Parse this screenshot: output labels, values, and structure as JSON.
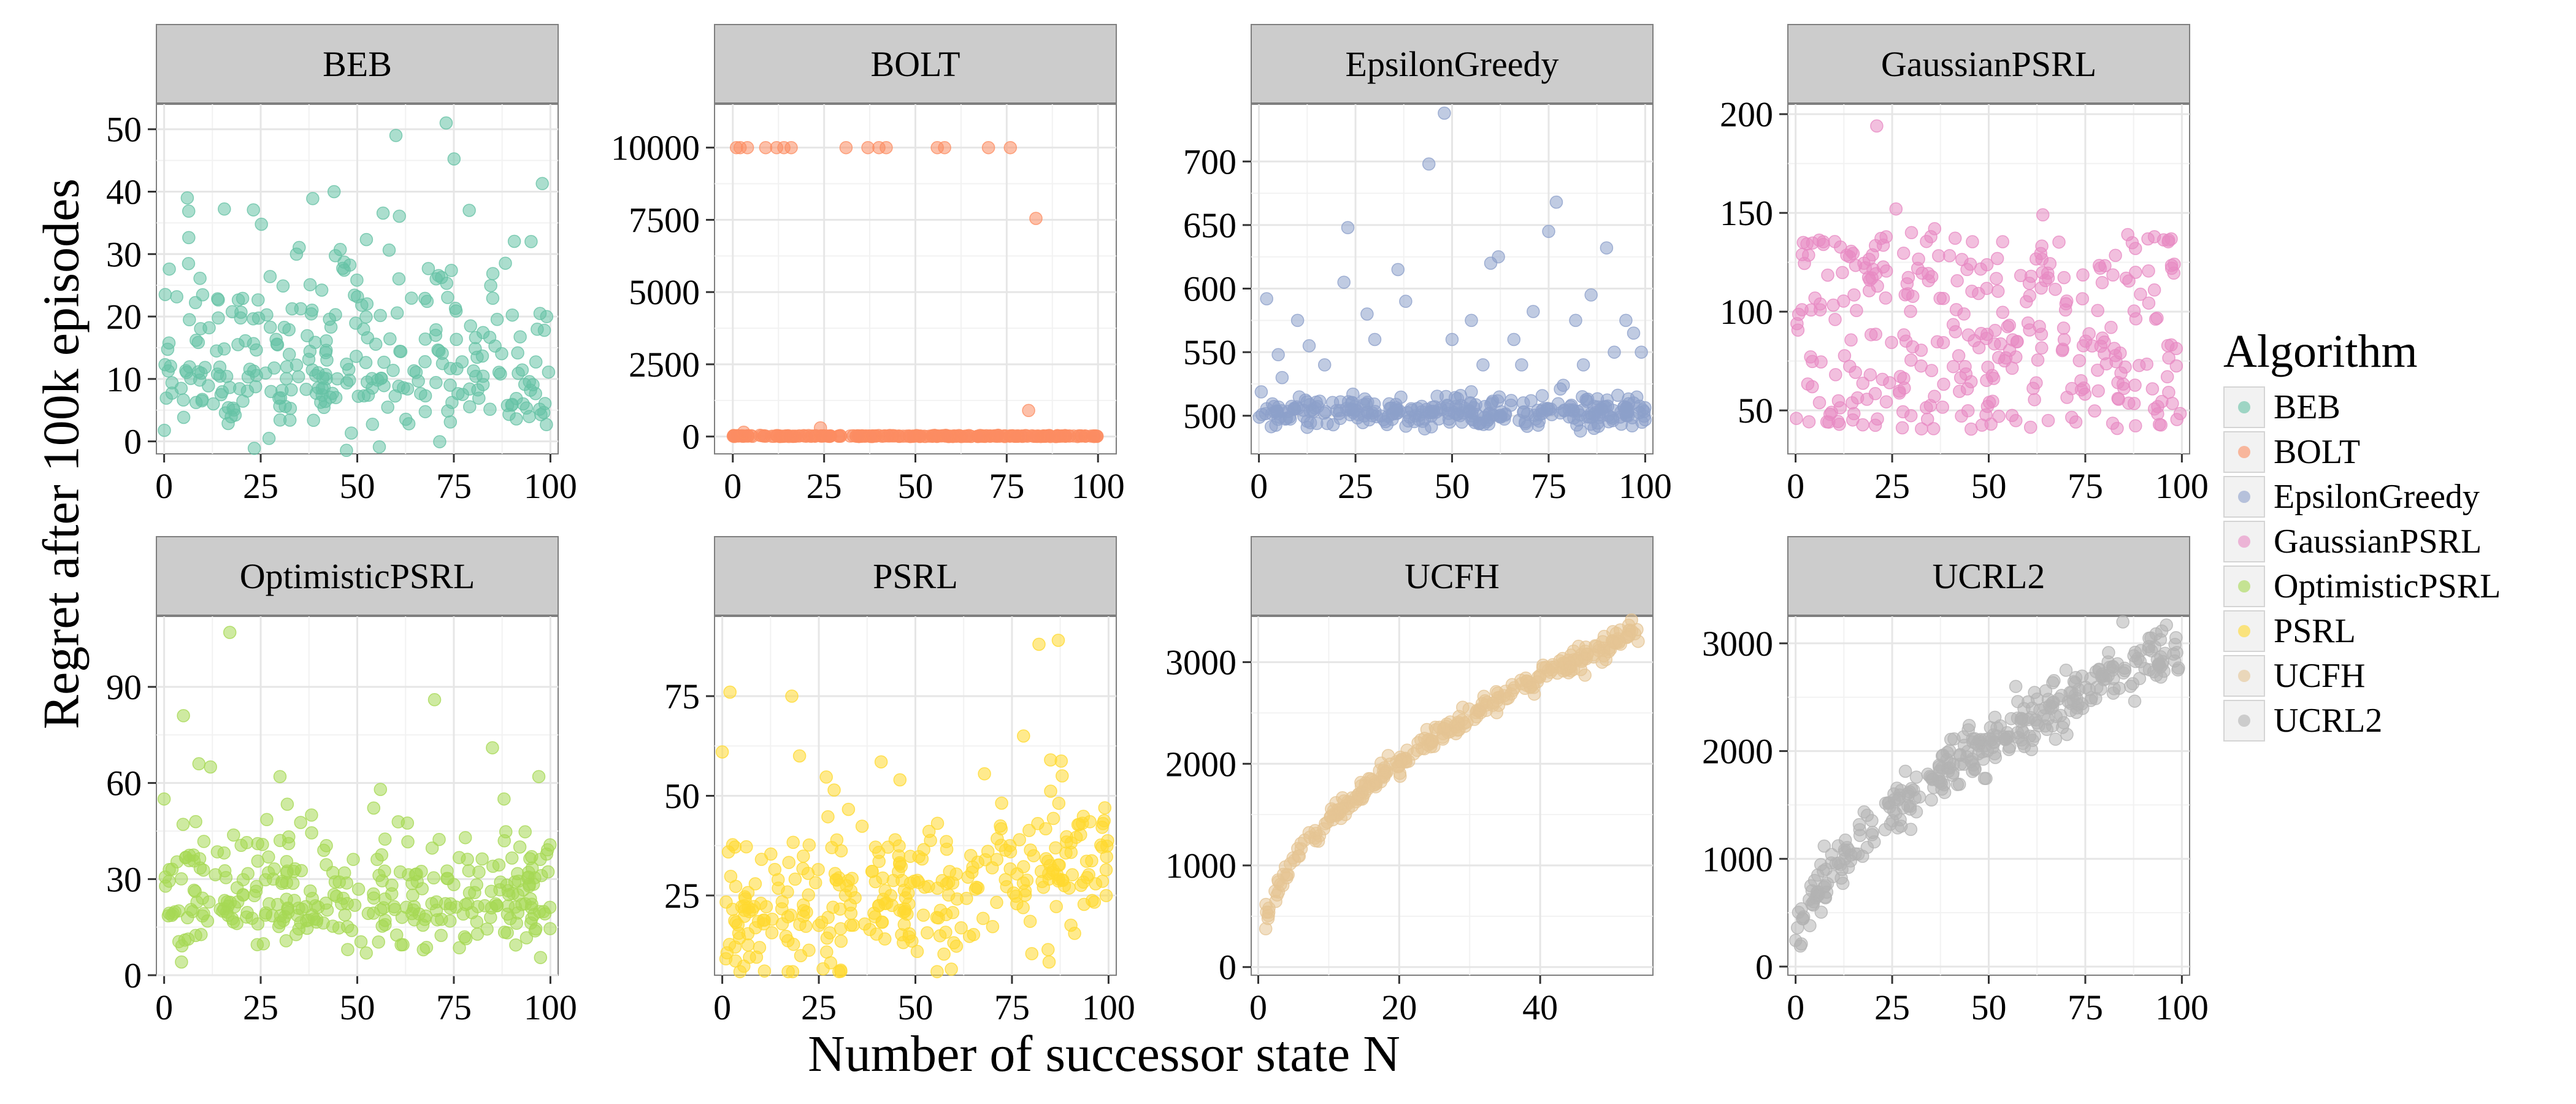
{
  "figure": {
    "ylabel": "Regret after 100k episodes",
    "xlabel": "Number of successor state N",
    "legend_title": "Algorithm"
  },
  "legend": [
    {
      "label": "BEB",
      "color": "#66c2a5"
    },
    {
      "label": "BOLT",
      "color": "#fc8d62"
    },
    {
      "label": "EpsilonGreedy",
      "color": "#8da0cb"
    },
    {
      "label": "GaussianPSRL",
      "color": "#e78ac3"
    },
    {
      "label": "OptimisticPSRL",
      "color": "#a6d854"
    },
    {
      "label": "PSRL",
      "color": "#ffd92f"
    },
    {
      "label": "UCFH",
      "color": "#e5c494"
    },
    {
      "label": "UCRL2",
      "color": "#b3b3b3"
    }
  ],
  "chart_data": [
    {
      "type": "scatter",
      "title": "BEB",
      "color": "#66c2a5",
      "xlim": [
        -2,
        102
      ],
      "ylim": [
        -2,
        54
      ],
      "xticks": [
        0,
        25,
        50,
        75,
        100
      ],
      "yticks": [
        0,
        10,
        20,
        30,
        40,
        50
      ],
      "gen": {
        "seed": 11,
        "n": 300,
        "xmax": 100,
        "kind": "noise",
        "base": 12,
        "spread": 7,
        "skew": 1.6
      },
      "outliers": [
        [
          6,
          39
        ],
        [
          44,
          40
        ],
        [
          60,
          49
        ],
        [
          73,
          51
        ],
        [
          79,
          37
        ],
        [
          95,
          32
        ]
      ]
    },
    {
      "type": "scatter",
      "title": "BOLT",
      "color": "#fc8d62",
      "xlim": [
        -5,
        105
      ],
      "ylim": [
        -600,
        11500
      ],
      "xticks": [
        0,
        25,
        50,
        75,
        100
      ],
      "yticks": [
        0,
        2500,
        5000,
        7500,
        10000
      ],
      "gen": {
        "seed": 22,
        "n": 260,
        "xmax": 100,
        "kind": "noise",
        "base": 15,
        "spread": 10,
        "skew": 1.0
      },
      "outliers": [
        [
          1,
          10000
        ],
        [
          2,
          10000
        ],
        [
          4,
          10000
        ],
        [
          9,
          10000
        ],
        [
          12,
          10000
        ],
        [
          14,
          10000
        ],
        [
          16,
          10000
        ],
        [
          31,
          10000
        ],
        [
          37,
          10000
        ],
        [
          40,
          10000
        ],
        [
          42,
          10000
        ],
        [
          56,
          10000
        ],
        [
          58,
          10000
        ],
        [
          70,
          10000
        ],
        [
          76,
          10000
        ],
        [
          81,
          900
        ],
        [
          83,
          7550
        ],
        [
          24,
          300
        ],
        [
          3,
          150
        ]
      ]
    },
    {
      "type": "scatter",
      "title": "EpsilonGreedy",
      "color": "#8da0cb",
      "xlim": [
        -2,
        102
      ],
      "ylim": [
        470,
        745
      ],
      "xticks": [
        0,
        25,
        50,
        75,
        100
      ],
      "yticks": [
        500,
        550,
        600,
        650,
        700
      ],
      "gen": {
        "seed": 33,
        "n": 300,
        "xmax": 100,
        "kind": "noise",
        "base": 503,
        "spread": 7,
        "skew": 1.0
      },
      "outliers": [
        [
          2,
          592
        ],
        [
          5,
          548
        ],
        [
          10,
          575
        ],
        [
          17,
          540
        ],
        [
          23,
          648
        ],
        [
          22,
          605
        ],
        [
          28,
          580
        ],
        [
          30,
          560
        ],
        [
          36,
          615
        ],
        [
          44,
          698
        ],
        [
          48,
          738
        ],
        [
          50,
          560
        ],
        [
          55,
          575
        ],
        [
          58,
          540
        ],
        [
          60,
          620
        ],
        [
          62,
          625
        ],
        [
          66,
          560
        ],
        [
          71,
          582
        ],
        [
          75,
          645
        ],
        [
          77,
          668
        ],
        [
          82,
          575
        ],
        [
          86,
          595
        ],
        [
          90,
          632
        ],
        [
          92,
          550
        ],
        [
          95,
          575
        ],
        [
          97,
          565
        ],
        [
          99,
          550
        ],
        [
          13,
          555
        ],
        [
          38,
          590
        ],
        [
          68,
          540
        ],
        [
          84,
          540
        ],
        [
          6,
          530
        ]
      ]
    },
    {
      "type": "scatter",
      "title": "GaussianPSRL",
      "color": "#e78ac3",
      "xlim": [
        -2,
        102
      ],
      "ylim": [
        28,
        205
      ],
      "xticks": [
        0,
        25,
        50,
        75,
        100
      ],
      "yticks": [
        50,
        100,
        150,
        200
      ],
      "gen": {
        "seed": 44,
        "n": 320,
        "xmax": 100,
        "kind": "uniform",
        "lo": 40,
        "hi": 138
      },
      "outliers": [
        [
          21,
          194
        ],
        [
          26,
          152
        ],
        [
          64,
          149
        ],
        [
          2,
          135
        ],
        [
          30,
          140
        ],
        [
          36,
          142
        ],
        [
          86,
          139
        ]
      ]
    },
    {
      "type": "scatter",
      "title": "OptimisticPSRL",
      "color": "#a6d854",
      "xlim": [
        -2,
        102
      ],
      "ylim": [
        0,
        112
      ],
      "xticks": [
        0,
        25,
        50,
        75,
        100
      ],
      "yticks": [
        0,
        30,
        60,
        90
      ],
      "gen": {
        "seed": 55,
        "n": 320,
        "xmax": 100,
        "kind": "noise",
        "base": 23,
        "spread": 9,
        "skew": 1.3
      },
      "outliers": [
        [
          17,
          107
        ],
        [
          5,
          81
        ],
        [
          70,
          86
        ],
        [
          9,
          66
        ],
        [
          12,
          65
        ],
        [
          85,
          71
        ],
        [
          97,
          62
        ],
        [
          0,
          55
        ],
        [
          30,
          62
        ],
        [
          56,
          58
        ],
        [
          88,
          55
        ]
      ]
    },
    {
      "type": "scatter",
      "title": "PSRL",
      "color": "#ffd92f",
      "xlim": [
        -2,
        102
      ],
      "ylim": [
        5,
        95
      ],
      "xticks": [
        0,
        25,
        50,
        75,
        100
      ],
      "yticks": [
        25,
        50,
        75
      ],
      "gen": {
        "seed": 66,
        "n": 320,
        "xmax": 100,
        "kind": "trend",
        "a": 20,
        "b": 0.14,
        "spread": 9
      },
      "outliers": [
        [
          82,
          88
        ],
        [
          87,
          89
        ],
        [
          2,
          76
        ],
        [
          18,
          75
        ],
        [
          78,
          65
        ],
        [
          0,
          61
        ],
        [
          20,
          60
        ],
        [
          85,
          59
        ],
        [
          88,
          55
        ],
        [
          46,
          54
        ]
      ]
    },
    {
      "type": "scatter",
      "title": "UCFH",
      "color": "#e5c494",
      "xlim": [
        -1,
        56
      ],
      "ylim": [
        -80,
        3450
      ],
      "xticks": [
        0,
        20,
        40
      ],
      "yticks": [
        0,
        1000,
        2000,
        3000
      ],
      "gen": {
        "seed": 77,
        "n": 300,
        "xmax": 54,
        "xmin": 1,
        "kind": "sqrtcurve",
        "scale": 452,
        "spread": 55
      },
      "outliers": []
    },
    {
      "type": "scatter",
      "title": "UCRL2",
      "color": "#b3b3b3",
      "xlim": [
        -2,
        102
      ],
      "ylim": [
        -80,
        3250
      ],
      "xticks": [
        0,
        25,
        50,
        75,
        100
      ],
      "yticks": [
        0,
        1000,
        2000,
        3000
      ],
      "gen": {
        "seed": 88,
        "n": 330,
        "xmax": 100,
        "xmin": 0,
        "kind": "sqrtcurve",
        "scale": 292,
        "spread": 130
      },
      "outliers": [
        [
          96,
          3170
        ],
        [
          92,
          3050
        ],
        [
          70,
          2750
        ],
        [
          57,
          2600
        ]
      ]
    }
  ]
}
